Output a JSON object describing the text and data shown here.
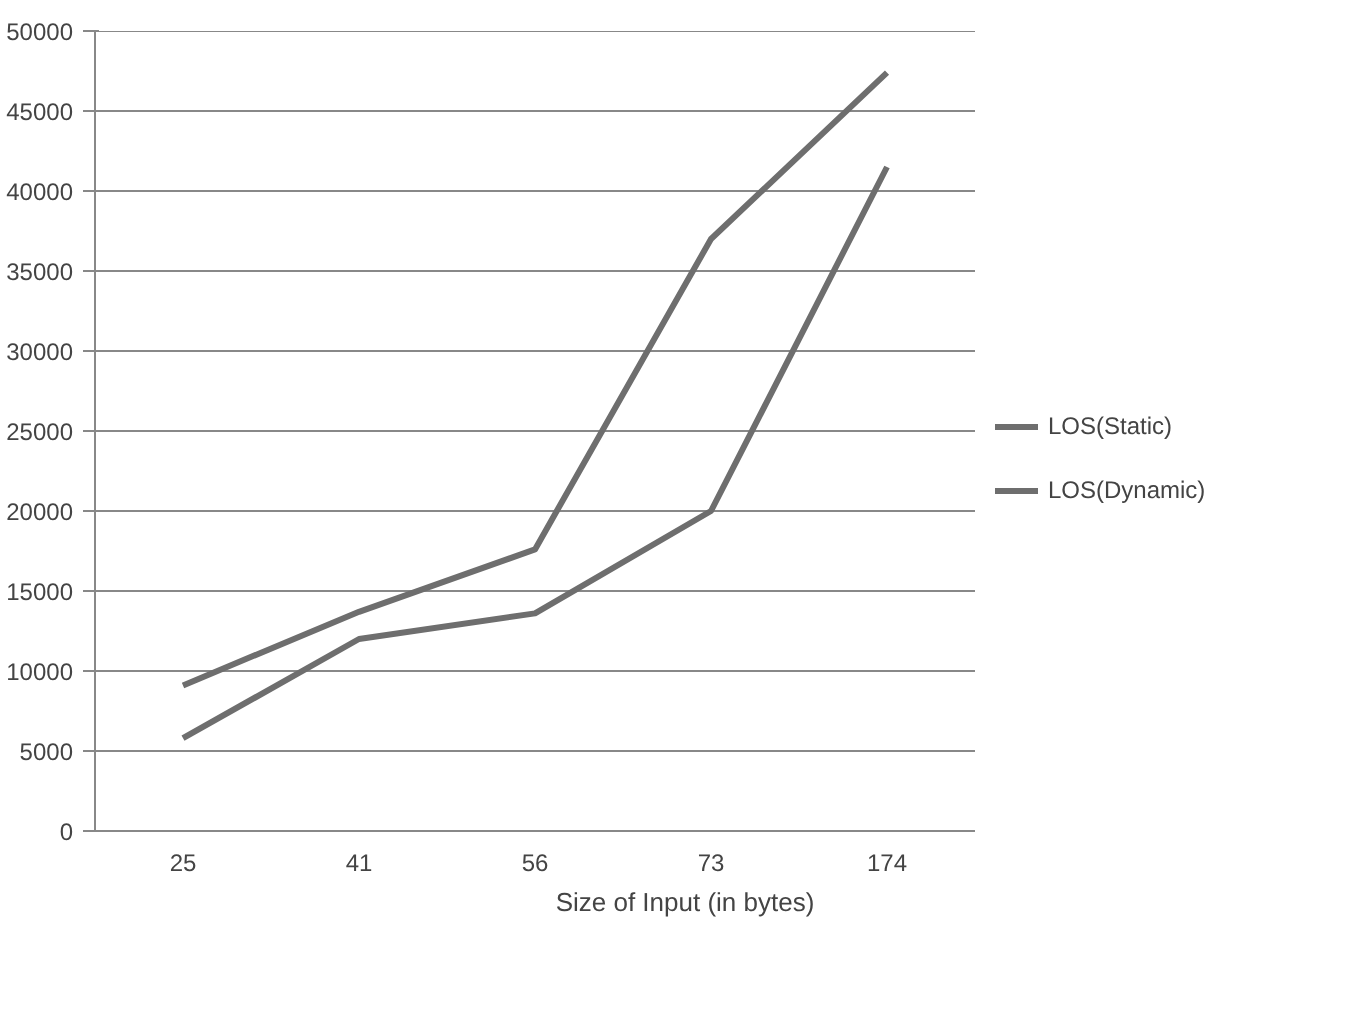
{
  "chart_data": {
    "type": "line",
    "xlabel": "Size of Input (in bytes)",
    "categories": [
      "25",
      "41",
      "56",
      "73",
      "174"
    ],
    "series": [
      {
        "name": "LOS(Static)",
        "color": "#6e6e6e",
        "values": [
          9100,
          13700,
          17600,
          37000,
          47400
        ]
      },
      {
        "name": "LOS(Dynamic)",
        "color": "#6e6e6e",
        "values": [
          5800,
          12000,
          13600,
          20000,
          41500
        ]
      }
    ],
    "ylim": [
      0,
      50000
    ],
    "yticks": [
      0,
      5000,
      10000,
      15000,
      20000,
      25000,
      30000,
      35000,
      40000,
      45000,
      50000
    ],
    "grid": "y",
    "legend": "right",
    "marker": "none",
    "line_style": "solid"
  }
}
